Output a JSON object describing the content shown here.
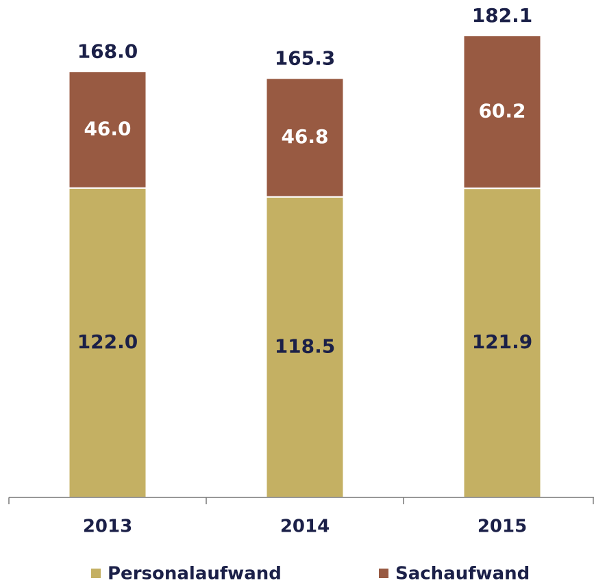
{
  "chart_data": {
    "type": "stacked-bar",
    "categories": [
      "2013",
      "2014",
      "2015"
    ],
    "series": [
      {
        "name": "Personalaufwand",
        "color": "#c4b063",
        "label_color": "#1b2048",
        "values": [
          122.0,
          118.5,
          121.9
        ],
        "value_labels": [
          "122.0",
          "118.5",
          "121.9"
        ]
      },
      {
        "name": "Sachaufwand",
        "color": "#985a42",
        "label_color": "#ffffff",
        "values": [
          46.0,
          46.8,
          60.2
        ],
        "value_labels": [
          "46.0",
          "46.8",
          "60.2"
        ]
      }
    ],
    "totals": [
      168.0,
      165.3,
      182.1
    ],
    "total_labels": [
      "168.0",
      "165.3",
      "182.1"
    ]
  }
}
